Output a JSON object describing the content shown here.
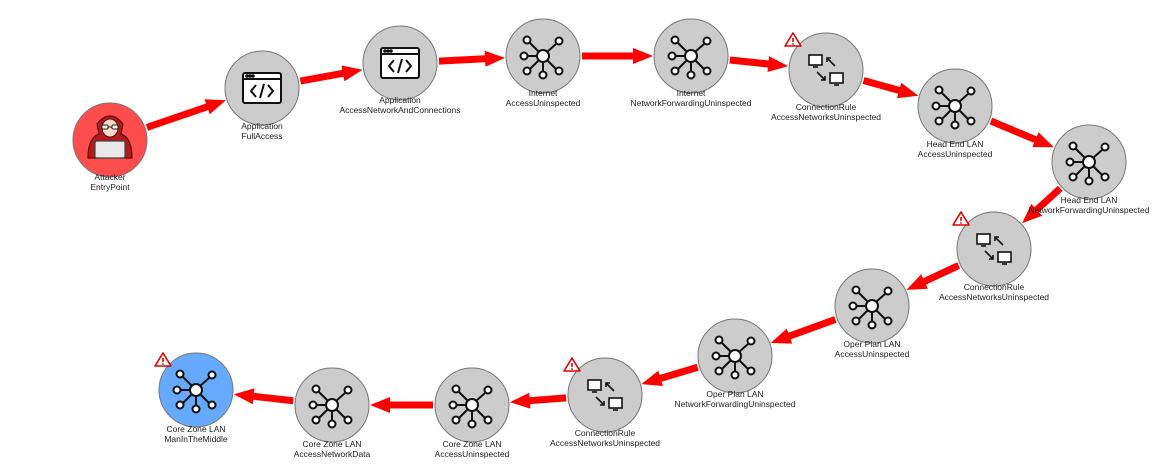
{
  "colors": {
    "edge": "#ff0000",
    "node_default": "#cccccc",
    "node_entry": "#ff4d4d",
    "node_target": "#66aaff",
    "node_stroke": "#777777",
    "warning": "#dd0000"
  },
  "nodes": [
    {
      "id": "n0",
      "line1": "Attacker",
      "line2": "EntryPoint",
      "icon": "hacker-icon",
      "kind": "entry",
      "warning": false
    },
    {
      "id": "n1",
      "line1": "Application",
      "line2": "FullAccess",
      "icon": "code-window-icon",
      "kind": "default",
      "warning": false
    },
    {
      "id": "n2",
      "line1": "Application",
      "line2": "AccessNetworkAndConnections",
      "icon": "code-window-icon",
      "kind": "default",
      "warning": false
    },
    {
      "id": "n3",
      "line1": "Internet",
      "line2": "AccessUninspected",
      "icon": "network-hub-icon",
      "kind": "default",
      "warning": false
    },
    {
      "id": "n4",
      "line1": "Internet",
      "line2": "NetworkForwardingUninspected",
      "icon": "network-hub-icon",
      "kind": "default",
      "warning": false
    },
    {
      "id": "n5",
      "line1": "ConnectionRule",
      "line2": "AccessNetworksUninspected",
      "icon": "connection-rule-icon",
      "kind": "default",
      "warning": true
    },
    {
      "id": "n6",
      "line1": "Head End LAN",
      "line2": "AccessUninspected",
      "icon": "network-hub-icon",
      "kind": "default",
      "warning": false
    },
    {
      "id": "n7",
      "line1": "Head End LAN",
      "line2": "NetworkForwardingUninspected",
      "icon": "network-hub-icon",
      "kind": "default",
      "warning": false
    },
    {
      "id": "n8",
      "line1": "ConnectionRule",
      "line2": "AccessNetworksUninspected",
      "icon": "connection-rule-icon",
      "kind": "default",
      "warning": true
    },
    {
      "id": "n9",
      "line1": "Oper Plan LAN",
      "line2": "AccessUninspected",
      "icon": "network-hub-icon",
      "kind": "default",
      "warning": false
    },
    {
      "id": "n10",
      "line1": "Oper Plan LAN",
      "line2": "NetworkForwardingUninspected",
      "icon": "network-hub-icon",
      "kind": "default",
      "warning": false
    },
    {
      "id": "n11",
      "line1": "ConnectionRule",
      "line2": "AccessNetworksUninspected",
      "icon": "connection-rule-icon",
      "kind": "default",
      "warning": true
    },
    {
      "id": "n12",
      "line1": "Core Zone LAN",
      "line2": "AccessUninspected",
      "icon": "network-hub-icon",
      "kind": "default",
      "warning": false
    },
    {
      "id": "n13",
      "line1": "Core Zone LAN",
      "line2": "AccessNetworkData",
      "icon": "network-hub-icon",
      "kind": "default",
      "warning": false
    },
    {
      "id": "n14",
      "line1": "Core Zone LAN",
      "line2": "ManInTheMiddle",
      "icon": "network-hub-icon",
      "kind": "target",
      "warning": true
    }
  ],
  "edges": [
    [
      "n0",
      "n1"
    ],
    [
      "n1",
      "n2"
    ],
    [
      "n2",
      "n3"
    ],
    [
      "n3",
      "n4"
    ],
    [
      "n4",
      "n5"
    ],
    [
      "n5",
      "n6"
    ],
    [
      "n6",
      "n7"
    ],
    [
      "n7",
      "n8"
    ],
    [
      "n8",
      "n9"
    ],
    [
      "n9",
      "n10"
    ],
    [
      "n10",
      "n11"
    ],
    [
      "n11",
      "n12"
    ],
    [
      "n12",
      "n13"
    ],
    [
      "n13",
      "n14"
    ]
  ]
}
